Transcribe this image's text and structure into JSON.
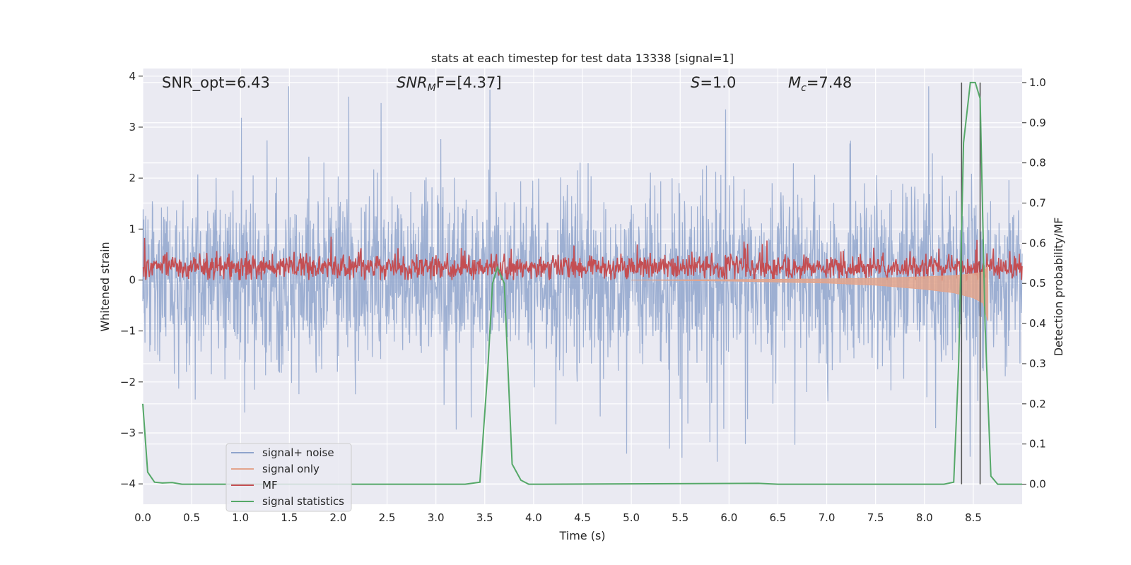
{
  "chart_data": {
    "type": "line",
    "title": "stats at each timestep for test data 13338 [signal=1]",
    "xlabel": "Time (s)",
    "ylabel_left": "Whitened strain",
    "ylabel_right": "Detection probability/MF",
    "xlim": [
      0.0,
      9.0
    ],
    "ylim_left": [
      -4.4,
      4.15
    ],
    "ylim_right": [
      -0.05,
      1.035
    ],
    "x_ticks": [
      "0.0",
      "0.5",
      "1.0",
      "1.5",
      "2.0",
      "2.5",
      "3.0",
      "3.5",
      "4.0",
      "4.5",
      "5.0",
      "5.5",
      "6.0",
      "6.5",
      "7.0",
      "7.5",
      "8.0",
      "8.5"
    ],
    "y_ticks_left": [
      "4",
      "3",
      "2",
      "1",
      "0",
      "−1",
      "−2",
      "−3",
      "−4"
    ],
    "y_ticks_right": [
      "1.0",
      "0.9",
      "0.8",
      "0.7",
      "0.6",
      "0.5",
      "0.4",
      "0.3",
      "0.2",
      "0.1",
      "0.0"
    ],
    "grid": true,
    "annotations": {
      "snr_opt": "SNR_opt=6.43",
      "snr_mf_a": "SNR",
      "snr_mf_sub": "M",
      "snr_mf_b": "F=[4.37]",
      "s_a": "S",
      "s_b": "=1.0",
      "mc_a": "M",
      "mc_sub": "c",
      "mc_b": "=7.48"
    },
    "vertical_lines_x": [
      8.38,
      8.57
    ],
    "legend_position": "lower-left",
    "series": [
      {
        "name": "signal+ noise",
        "color": "#8fa4cc",
        "axis": "left",
        "description_values": {
          "band_center": 0.0,
          "band_halfwidth_typ": 1.4,
          "peak_max": 3.8,
          "peak_min": -3.8
        }
      },
      {
        "name": "signal only",
        "color": "#e3a48c",
        "axis": "left",
        "x": [
          5.0,
          6.0,
          7.0,
          7.5,
          8.0,
          8.3,
          8.5,
          8.6,
          8.65
        ],
        "y": [
          0.0,
          -0.02,
          -0.06,
          -0.1,
          -0.18,
          -0.25,
          -0.35,
          -0.45,
          -0.8
        ]
      },
      {
        "name": "MF",
        "color": "#c44e52",
        "axis": "left",
        "description_values": {
          "baseline": 0.25,
          "range": [
            0.0,
            0.85
          ]
        }
      },
      {
        "name": "signal statistics",
        "color": "#55a868",
        "axis": "right",
        "x": [
          0.0,
          0.05,
          0.12,
          0.2,
          0.3,
          0.4,
          0.5,
          3.3,
          3.45,
          3.53,
          3.58,
          3.63,
          3.7,
          3.78,
          3.87,
          3.95,
          4.1,
          6.3,
          6.5,
          8.2,
          8.3,
          8.35,
          8.4,
          8.47,
          8.52,
          8.57,
          8.62,
          8.68,
          8.75,
          9.0
        ],
        "y": [
          0.2,
          0.03,
          0.005,
          0.003,
          0.004,
          0.0,
          0.0,
          0.0,
          0.005,
          0.28,
          0.5,
          0.54,
          0.5,
          0.05,
          0.01,
          0.0,
          0.0,
          0.002,
          0.0,
          0.0,
          0.005,
          0.3,
          0.85,
          1.0,
          1.0,
          0.96,
          0.4,
          0.02,
          0.0,
          0.0
        ]
      }
    ]
  }
}
